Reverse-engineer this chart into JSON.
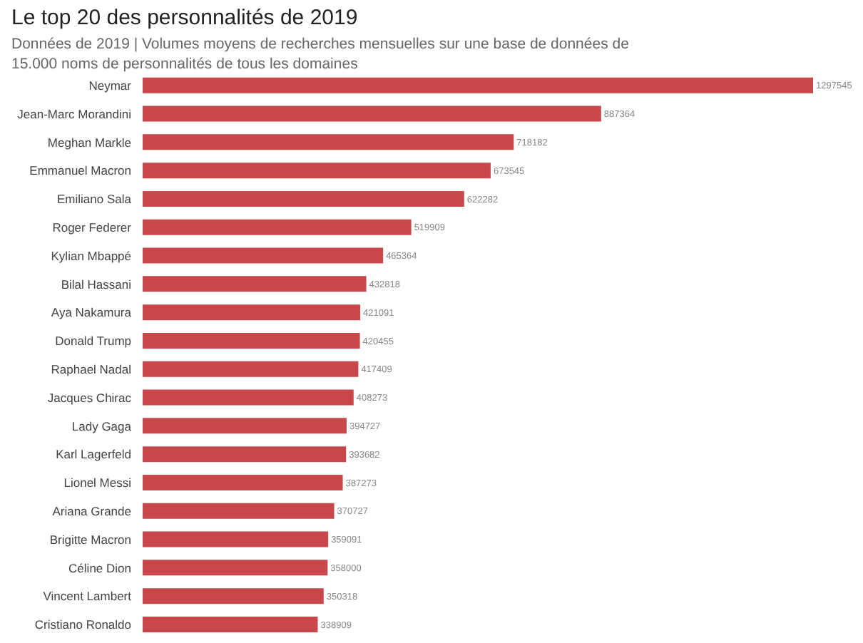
{
  "chart_data": {
    "type": "bar",
    "orientation": "horizontal",
    "title": "Le top 20 des personnalités de 2019",
    "subtitle": "Données de 2019 | Volumes moyens de recherches mensuelles sur une base de données de 15.000 noms de personnalités de tous les domaines",
    "categories": [
      "Neymar",
      "Jean-Marc Morandini",
      "Meghan Markle",
      "Emmanuel Macron",
      "Emiliano Sala",
      "Roger Federer",
      "Kylian Mbappé",
      "Bilal Hassani",
      "Aya Nakamura",
      "Donald Trump",
      "Raphael Nadal",
      "Jacques Chirac",
      "Lady Gaga",
      "Karl Lagerfeld",
      "Lionel Messi",
      "Ariana Grande",
      "Brigitte Macron",
      "Céline Dion",
      "Vincent Lambert",
      "Cristiano Ronaldo"
    ],
    "values": [
      1297545,
      887364,
      718182,
      673545,
      622282,
      519909,
      465364,
      432818,
      421091,
      420455,
      417409,
      408273,
      394727,
      393682,
      387273,
      370727,
      359091,
      358000,
      350318,
      338909
    ],
    "color": "#c7474b",
    "data_labels": true
  }
}
